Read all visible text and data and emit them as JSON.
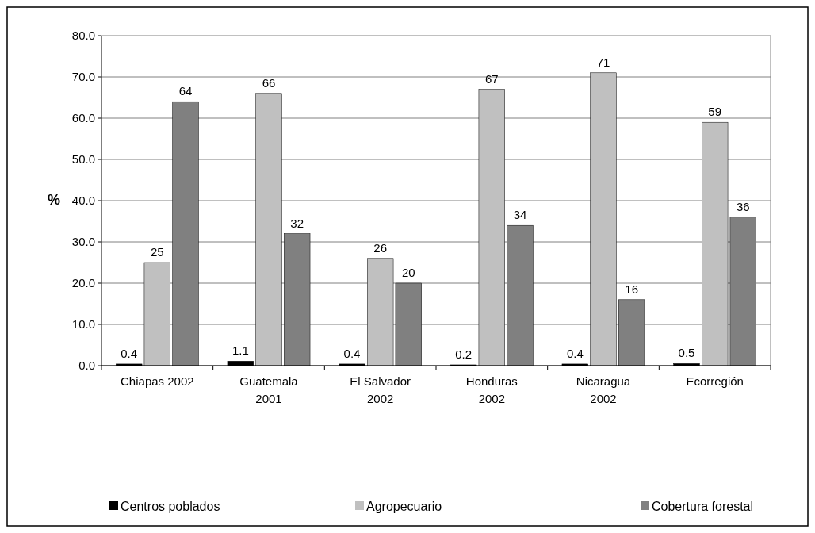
{
  "chart_data": {
    "type": "bar",
    "ylabel": "%",
    "categories": [
      "Chiapas 2002",
      "Guatemala 2001",
      "El Salvador 2002",
      "Honduras 2002",
      "Nicaragua 2002",
      "Ecorregión"
    ],
    "series": [
      {
        "name": "Centros poblados",
        "color": "#000000",
        "values": [
          0.4,
          1.1,
          0.4,
          0.2,
          0.4,
          0.5
        ]
      },
      {
        "name": "Agropecuario",
        "color": "#c0c0c0",
        "values": [
          25,
          66,
          26,
          67,
          71,
          59
        ]
      },
      {
        "name": "Cobertura forestal",
        "color": "#808080",
        "values": [
          64,
          32,
          20,
          34,
          16,
          36
        ]
      }
    ],
    "ylim": [
      0,
      80
    ],
    "yticks": [
      {
        "value": 0,
        "label": "0.0"
      },
      {
        "value": 10,
        "label": "10.0"
      },
      {
        "value": 20,
        "label": "20.0"
      },
      {
        "value": 30,
        "label": "30.0"
      },
      {
        "value": 40,
        "label": "40.0"
      },
      {
        "value": 50,
        "label": "50.0"
      },
      {
        "value": 60,
        "label": "60.0"
      },
      {
        "value": 70,
        "label": "70.0"
      },
      {
        "value": 80,
        "label": "80.0"
      }
    ],
    "grid": "y",
    "legend": "bottom",
    "data_labels": true
  }
}
